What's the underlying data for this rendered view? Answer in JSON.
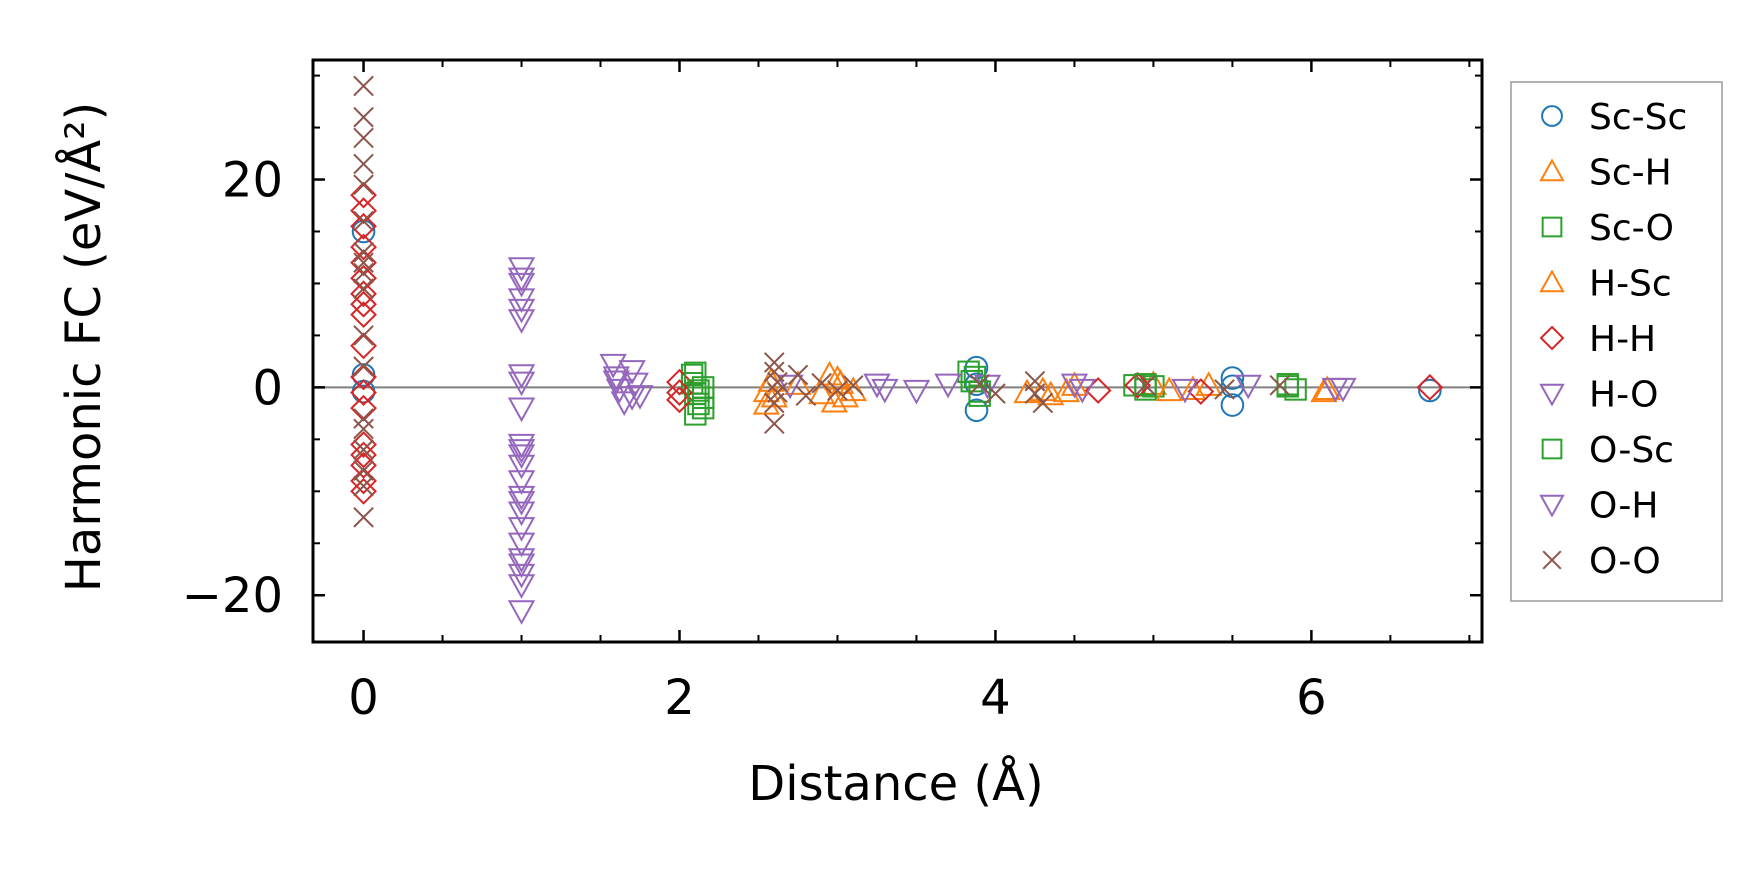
{
  "chart_data": {
    "type": "scatter",
    "xlabel": "Distance (Å)",
    "ylabel": "Harmonic FC (eV/Å²)",
    "xlim": [
      -0.32,
      7.08
    ],
    "ylim": [
      -24.5,
      31.5
    ],
    "xticks": [
      0,
      2,
      4,
      6
    ],
    "xtick_labels": [
      "0",
      "2",
      "4",
      "6"
    ],
    "yticks": [
      -20,
      0,
      20
    ],
    "ytick_labels": [
      "−20",
      "0",
      "20"
    ],
    "zero_line": 0,
    "grid": false,
    "legend_position": "outside-right",
    "series": [
      {
        "name": "Sc-Sc",
        "marker": "circle",
        "color": "#1f77b4",
        "points": [
          [
            0,
            1.2
          ],
          [
            0,
            -0.4
          ],
          [
            0,
            15
          ],
          [
            3.88,
            1.9
          ],
          [
            3.88,
            -2.2
          ],
          [
            3.88,
            0.3
          ],
          [
            5.5,
            0.9
          ],
          [
            5.5,
            -1.7
          ],
          [
            5.5,
            0.1
          ],
          [
            6.75,
            -0.3
          ]
        ]
      },
      {
        "name": "Sc-H",
        "marker": "triangle-up",
        "color": "#ff7f0e",
        "points": [
          [
            2.55,
            -0.4
          ],
          [
            2.55,
            -1.6
          ],
          [
            2.58,
            0.6
          ],
          [
            2.95,
            1.2
          ],
          [
            2.98,
            -1.4
          ],
          [
            3.02,
            0.4
          ],
          [
            3.05,
            -0.9
          ],
          [
            4.2,
            -0.5
          ],
          [
            4.35,
            -0.7
          ],
          [
            4.45,
            -0.4
          ],
          [
            5.0,
            0.3
          ],
          [
            5.25,
            -0.2
          ],
          [
            6.1,
            -0.2
          ]
        ]
      },
      {
        "name": "Sc-O",
        "marker": "square",
        "color": "#2ca02c",
        "points": [
          [
            2.08,
            1.2
          ],
          [
            2.08,
            0.4
          ],
          [
            2.1,
            -0.6
          ],
          [
            2.12,
            -1.6
          ],
          [
            2.1,
            -2.6
          ],
          [
            2.15,
            0.0
          ],
          [
            2.15,
            -1.0
          ],
          [
            3.83,
            1.5
          ],
          [
            3.85,
            0.6
          ],
          [
            3.9,
            -0.4
          ],
          [
            4.88,
            0.2
          ],
          [
            4.95,
            -0.2
          ],
          [
            5.0,
            0.1
          ],
          [
            5.85,
            0.3
          ],
          [
            5.9,
            -0.2
          ]
        ]
      },
      {
        "name": "H-Sc",
        "marker": "triangle-up",
        "color": "#ff7f0e",
        "points": [
          [
            2.6,
            -0.9
          ],
          [
            2.75,
            0.3
          ],
          [
            2.9,
            -0.6
          ],
          [
            3.0,
            0.8
          ],
          [
            3.1,
            -0.3
          ],
          [
            4.3,
            -0.3
          ],
          [
            4.5,
            0.2
          ],
          [
            5.1,
            -0.3
          ],
          [
            5.35,
            0.2
          ],
          [
            6.08,
            -0.4
          ]
        ]
      },
      {
        "name": "H-H",
        "marker": "diamond",
        "color": "#d62728",
        "points": [
          [
            0,
            18.5
          ],
          [
            0,
            17
          ],
          [
            0,
            15.5
          ],
          [
            0,
            13.5
          ],
          [
            0,
            12
          ],
          [
            0,
            10.5
          ],
          [
            0,
            9
          ],
          [
            0,
            8
          ],
          [
            0,
            7
          ],
          [
            0,
            4
          ],
          [
            0,
            1
          ],
          [
            0,
            -0.5
          ],
          [
            0,
            -2
          ],
          [
            0,
            -5.5
          ],
          [
            0,
            -6.5
          ],
          [
            0,
            -7.5
          ],
          [
            0,
            -9
          ],
          [
            0,
            -10
          ],
          [
            2.0,
            0.5
          ],
          [
            2.0,
            -0.5
          ],
          [
            2.0,
            -1.2
          ],
          [
            4.65,
            -0.3
          ],
          [
            4.9,
            0.2
          ],
          [
            5.3,
            -0.4
          ],
          [
            6.75,
            0
          ]
        ]
      },
      {
        "name": "H-O",
        "marker": "triangle-down",
        "color": "#9467bd",
        "points": [
          [
            1.0,
            11.5
          ],
          [
            1.0,
            10.5
          ],
          [
            1.0,
            8.5
          ],
          [
            1.0,
            7.5
          ],
          [
            1.0,
            6.5
          ],
          [
            1.0,
            1.2
          ],
          [
            1.0,
            -2
          ],
          [
            1.0,
            -5.5
          ],
          [
            1.0,
            -6.5
          ],
          [
            1.0,
            -7.5
          ],
          [
            1.0,
            -9
          ],
          [
            1.0,
            -10.5
          ],
          [
            1.0,
            -12
          ],
          [
            1.0,
            -13.5
          ],
          [
            1.0,
            -15
          ],
          [
            1.0,
            -16.5
          ],
          [
            1.0,
            -18
          ],
          [
            1.0,
            -19
          ],
          [
            1.0,
            -21.5
          ],
          [
            1.58,
            2.2
          ],
          [
            1.6,
            1.0
          ],
          [
            1.62,
            -0.2
          ],
          [
            1.65,
            -1.4
          ],
          [
            1.7,
            1.6
          ],
          [
            1.72,
            0.4
          ],
          [
            1.75,
            -0.8
          ],
          [
            3.25,
            0.3
          ],
          [
            3.5,
            -0.3
          ],
          [
            3.95,
            0.2
          ],
          [
            4.5,
            0.3
          ],
          [
            5.2,
            -0.2
          ],
          [
            6.15,
            -0.1
          ]
        ]
      },
      {
        "name": "O-Sc",
        "marker": "square",
        "color": "#2ca02c",
        "points": [
          [
            2.1,
            1.4
          ],
          [
            2.12,
            -0.3
          ],
          [
            2.15,
            -2.0
          ],
          [
            3.87,
            1.0
          ],
          [
            3.9,
            -0.8
          ],
          [
            4.95,
            0.3
          ],
          [
            5.85,
            0.1
          ]
        ]
      },
      {
        "name": "O-H",
        "marker": "triangle-down",
        "color": "#9467bd",
        "points": [
          [
            1.0,
            10
          ],
          [
            1.0,
            0.5
          ],
          [
            1.0,
            -6
          ],
          [
            1.0,
            -11
          ],
          [
            1.0,
            -17
          ],
          [
            1.6,
            0.6
          ],
          [
            1.7,
            -0.9
          ],
          [
            2.7,
            0.2
          ],
          [
            3.3,
            -0.2
          ],
          [
            3.7,
            0.3
          ],
          [
            4.55,
            -0.2
          ],
          [
            5.6,
            0.2
          ],
          [
            6.2,
            -0.1
          ]
        ]
      },
      {
        "name": "O-O",
        "marker": "x",
        "color": "#8c564b",
        "points": [
          [
            0,
            29
          ],
          [
            0,
            26
          ],
          [
            0,
            24
          ],
          [
            0,
            21.5
          ],
          [
            0,
            19.5
          ],
          [
            0,
            16
          ],
          [
            0,
            13
          ],
          [
            0,
            12
          ],
          [
            0,
            11
          ],
          [
            0,
            9.5
          ],
          [
            0,
            5
          ],
          [
            0,
            2
          ],
          [
            0,
            -3
          ],
          [
            0,
            -4
          ],
          [
            0,
            -6
          ],
          [
            0,
            -8
          ],
          [
            0,
            -9.5
          ],
          [
            0,
            -12.5
          ],
          [
            2.6,
            2.4
          ],
          [
            2.6,
            1.5
          ],
          [
            2.62,
            0.5
          ],
          [
            2.62,
            -0.5
          ],
          [
            2.6,
            -1.5
          ],
          [
            2.6,
            -3.5
          ],
          [
            2.75,
            1.2
          ],
          [
            2.8,
            -0.8
          ],
          [
            2.9,
            0.4
          ],
          [
            3.0,
            -0.3
          ],
          [
            3.1,
            0.2
          ],
          [
            3.9,
            0.3
          ],
          [
            4.0,
            -0.6
          ],
          [
            4.25,
            0.6
          ],
          [
            4.25,
            -0.6
          ],
          [
            4.3,
            -1.5
          ],
          [
            4.95,
            0.2
          ],
          [
            5.45,
            -0.2
          ],
          [
            5.8,
            0.2
          ]
        ]
      }
    ]
  }
}
